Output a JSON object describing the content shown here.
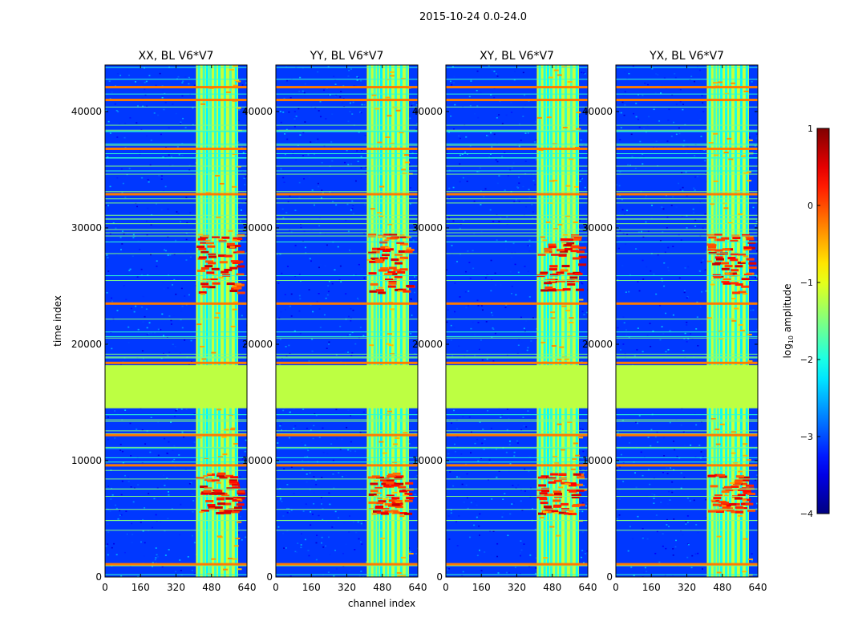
{
  "chart_data": {
    "type": "heatmap",
    "suptitle": "2015-10-24 0.0-24.0",
    "xlabel": "channel index",
    "ylabel": "time index",
    "xlim": [
      0,
      640
    ],
    "ylim": [
      0,
      44000
    ],
    "xticks": [
      0,
      160,
      320,
      480,
      640
    ],
    "yticks": [
      0,
      10000,
      20000,
      30000,
      40000
    ],
    "panels": [
      {
        "id": "xx",
        "title": "XX, BL V6*V7"
      },
      {
        "id": "yy",
        "title": "YY, BL V6*V7"
      },
      {
        "id": "xy",
        "title": "XY, BL V6*V7"
      },
      {
        "id": "yx",
        "title": "YX, BL V6*V7"
      }
    ],
    "colorbar": {
      "label": "log10 amplitude",
      "label_main": "log",
      "label_sub": "10",
      "label_tail": " amplitude",
      "range": [
        -4,
        1
      ],
      "ticks": [
        -4,
        -3,
        -2,
        -1,
        0,
        1
      ],
      "tick_labels": [
        "−4",
        "−3",
        "−2",
        "−1",
        "0",
        "1"
      ],
      "colormap": "jet"
    },
    "regions": {
      "flagged_time_band": [
        14500,
        18200
      ],
      "flagged_value": -1.2,
      "rfi_channel_band": [
        410,
        600
      ],
      "strong_rfi_time_bands": [
        [
          24500,
          29500
        ],
        [
          5500,
          9000
        ]
      ]
    }
  },
  "colors": {
    "flagged": "#99ff55",
    "stripe_orange": "#ff7a00",
    "background_noise": "#1a4dff"
  }
}
